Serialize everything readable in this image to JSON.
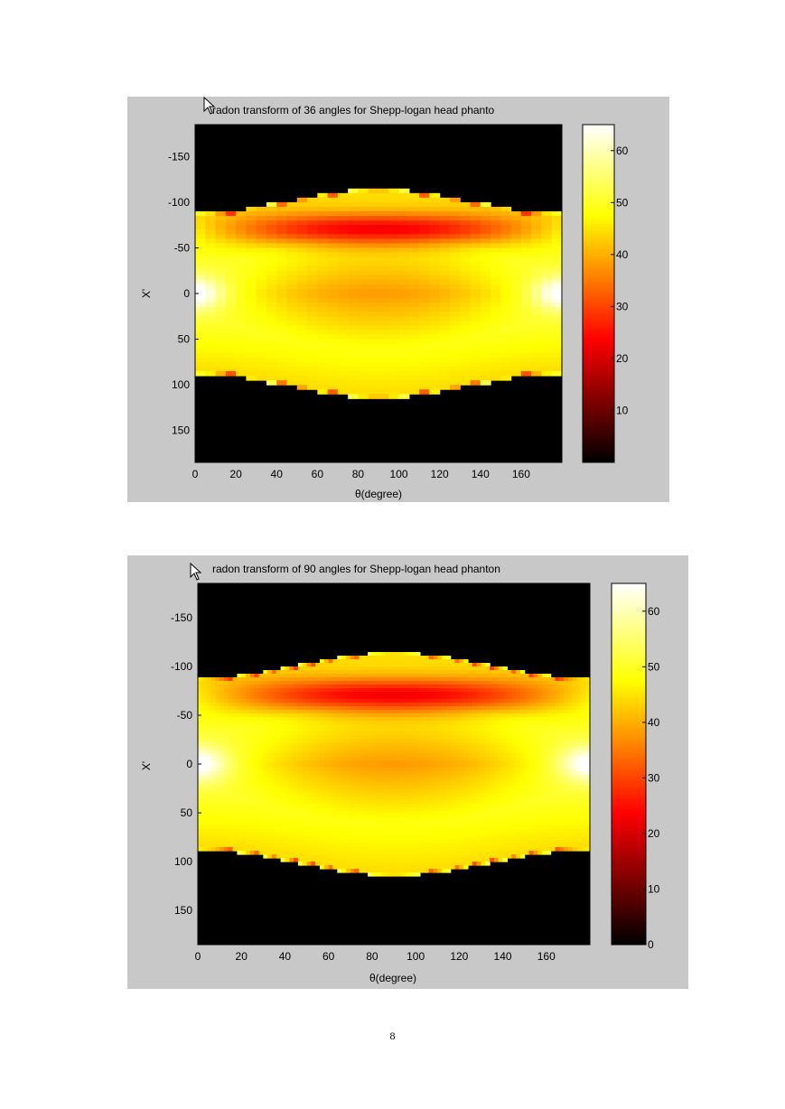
{
  "page": {
    "page_number": "8"
  },
  "chart_data": [
    {
      "type": "heatmap",
      "title": "radon transform of 36 angles for Shepp-logan head phanto",
      "xlabel": "θ(degree)",
      "ylabel": "X'",
      "x_ticks": [
        0,
        20,
        40,
        60,
        80,
        100,
        120,
        140,
        160
      ],
      "y_ticks": [
        -150,
        -100,
        -50,
        0,
        50,
        100,
        150
      ],
      "xlim": [
        0,
        180
      ],
      "ylim": [
        -185,
        185
      ],
      "colorbar_ticks": [
        10,
        20,
        30,
        40,
        50,
        60
      ],
      "colorbar_range": [
        0,
        65
      ],
      "colormap": "hot",
      "num_angles": 36
    },
    {
      "type": "heatmap",
      "title": "radon transform of 90 angles for Shepp-logan head phanton",
      "xlabel": "θ(degree)",
      "ylabel": "X'",
      "x_ticks": [
        0,
        20,
        40,
        60,
        80,
        100,
        120,
        140,
        160
      ],
      "y_ticks": [
        -150,
        -100,
        -50,
        0,
        50,
        100,
        150
      ],
      "xlim": [
        0,
        180
      ],
      "ylim": [
        -185,
        185
      ],
      "colorbar_ticks": [
        0,
        10,
        20,
        30,
        40,
        50,
        60
      ],
      "colorbar_range": [
        0,
        65
      ],
      "colormap": "hot",
      "num_angles": 90
    }
  ]
}
